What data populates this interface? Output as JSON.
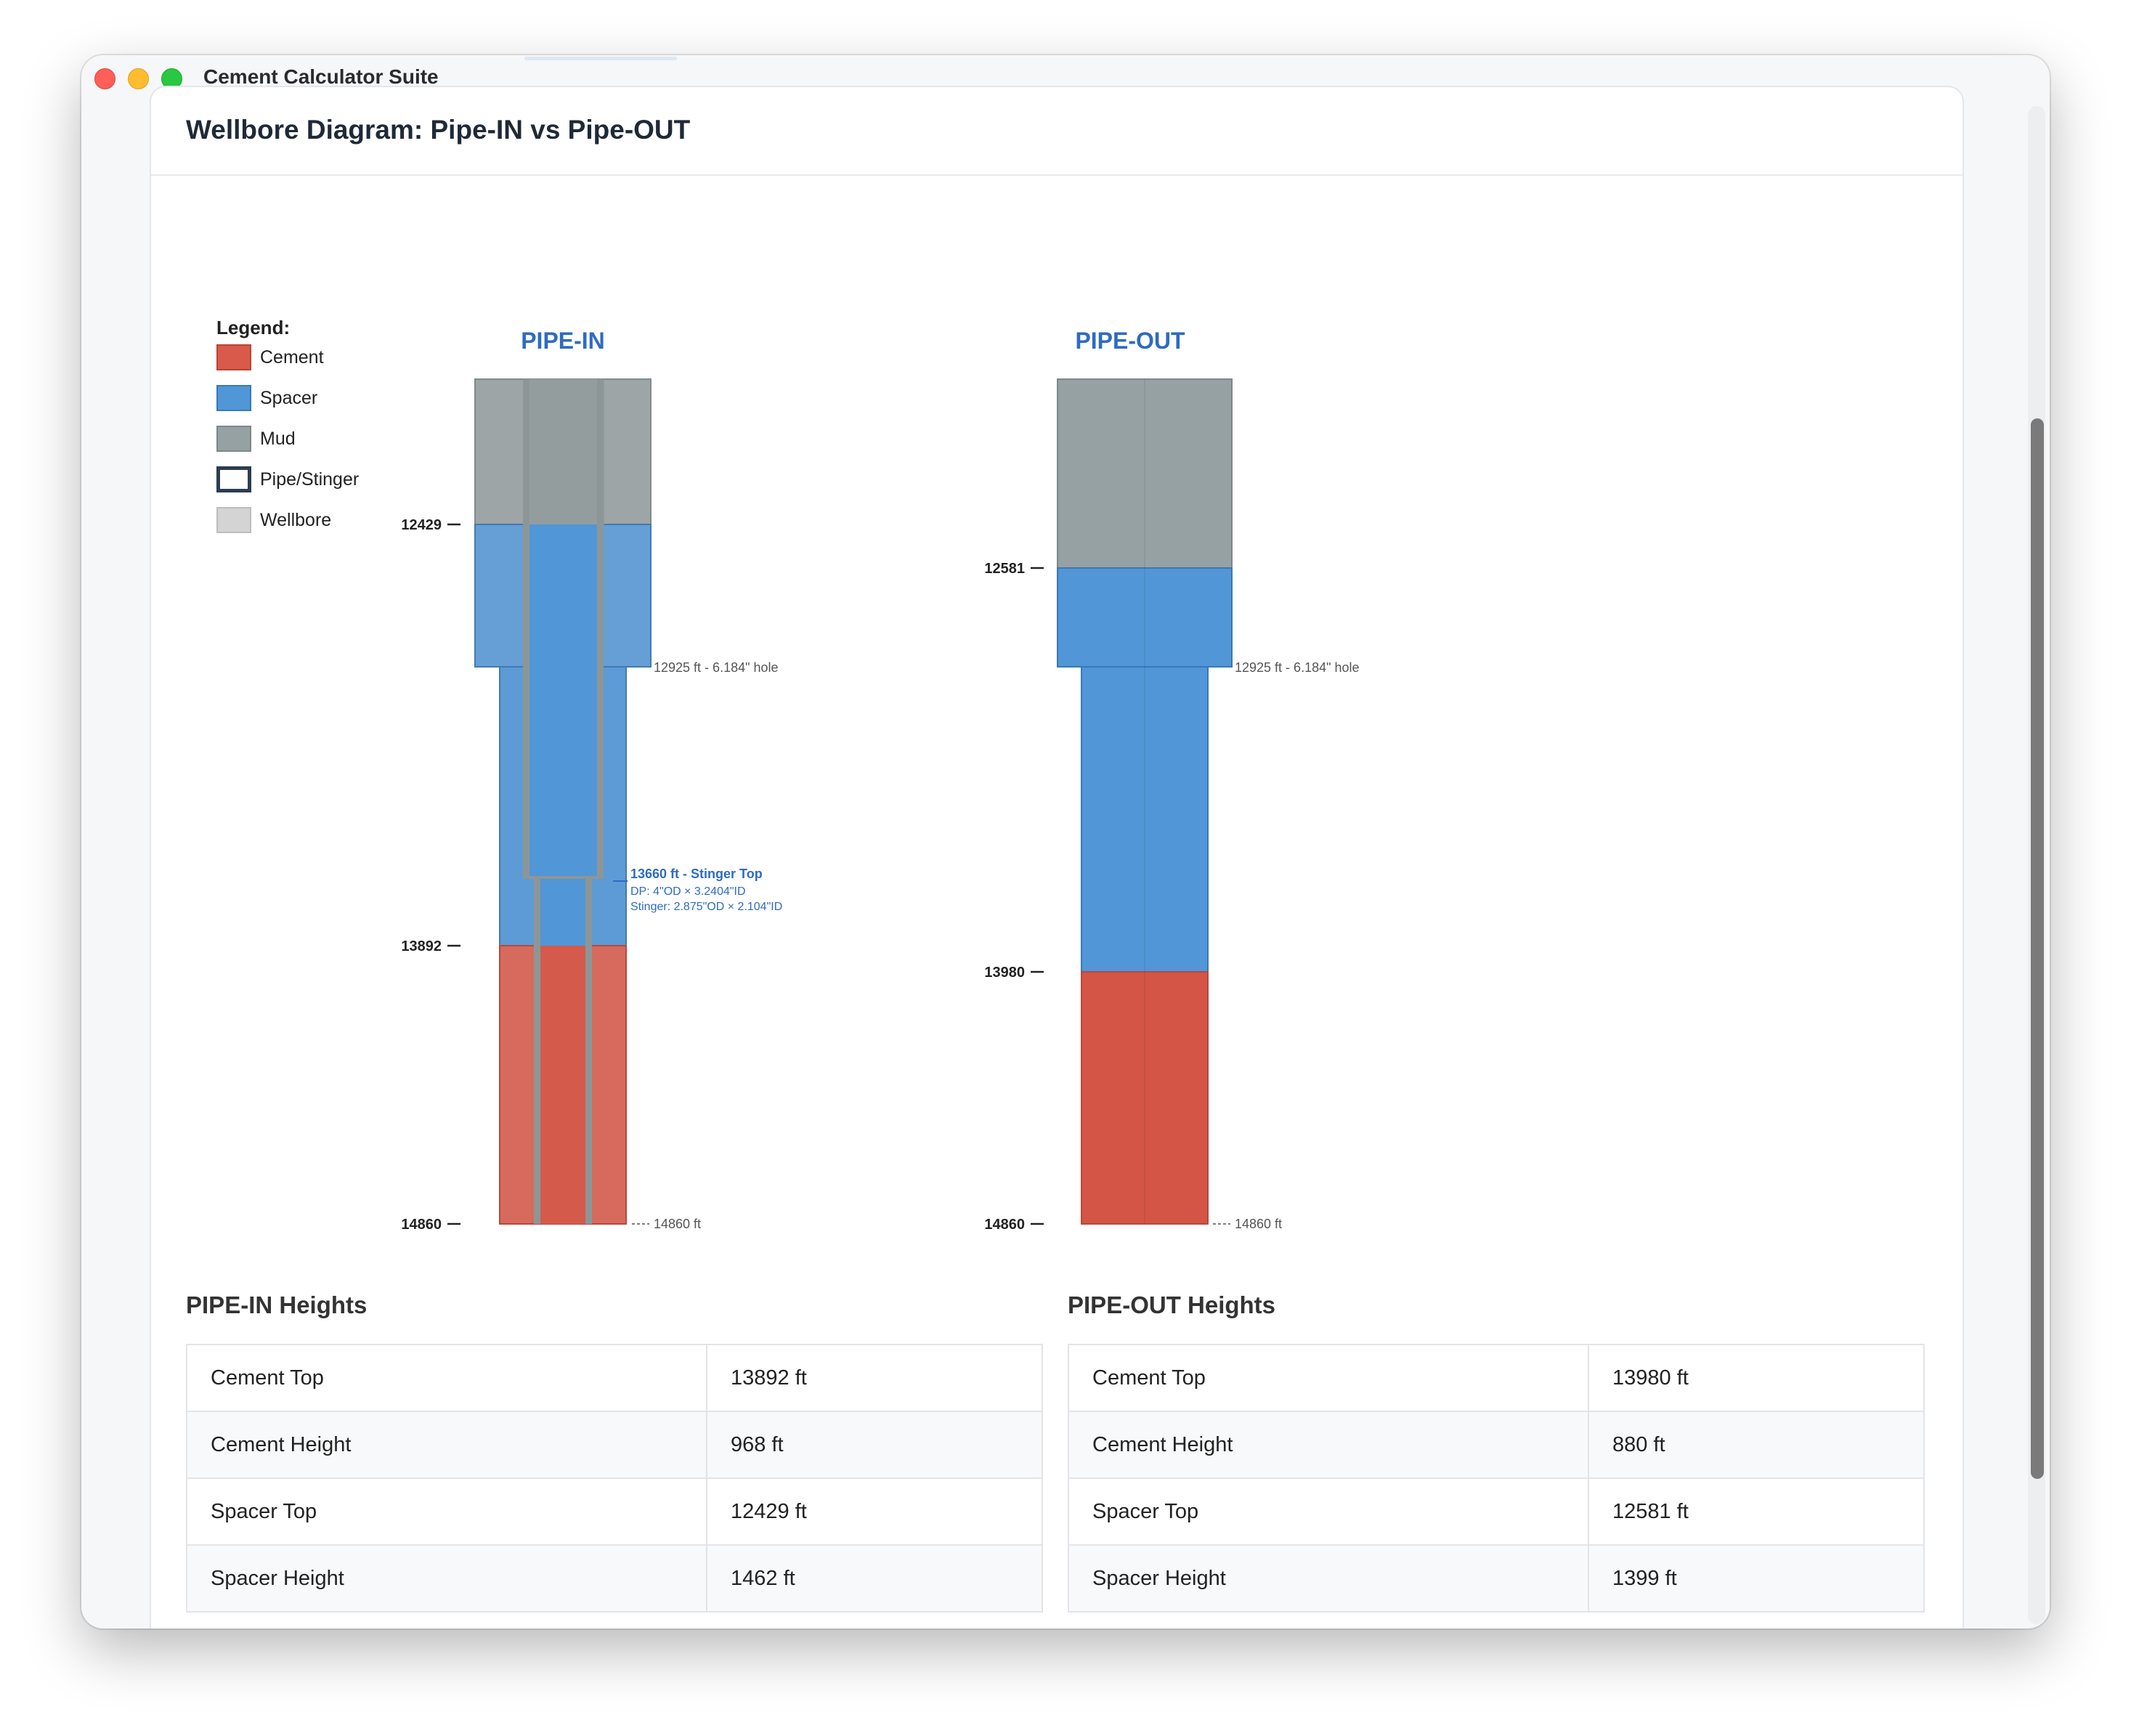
{
  "app": {
    "title": "Cement Calculator Suite"
  },
  "card": {
    "title": "Wellbore Diagram: Pipe-IN vs Pipe-OUT"
  },
  "legend": {
    "title": "Legend:",
    "items": [
      {
        "label": "Cement",
        "color": "#d95a4a"
      },
      {
        "label": "Spacer",
        "color": "#5196d6"
      },
      {
        "label": "Mud",
        "color": "#96a1a3"
      },
      {
        "label": "Pipe/Stinger",
        "color": "#ffffff"
      },
      {
        "label": "Wellbore",
        "color": "#d4d4d4"
      }
    ]
  },
  "colors": {
    "cement": "#d95a4a",
    "spacer": "#5196d6",
    "mud": "#96a1a3",
    "pipe": "#8d9697",
    "accent": "#2e6bc2"
  },
  "pipe_in": {
    "title": "PIPE-IN",
    "depth_labels": [
      "12429",
      "13892",
      "14860"
    ],
    "casing_label": "12925 ft - 6.184\" hole",
    "td_label": "14860 ft",
    "stinger_title": "13660 ft - Stinger Top",
    "stinger_dp": "DP: 4\"OD × 3.2404\"ID",
    "stinger_detail": "Stinger: 2.875\"OD × 2.104\"ID",
    "heights_title": "PIPE-IN Heights",
    "rows": [
      {
        "label": "Cement Top",
        "value": "13892 ft"
      },
      {
        "label": "Cement Height",
        "value": "968 ft"
      },
      {
        "label": "Spacer Top",
        "value": "12429 ft"
      },
      {
        "label": "Spacer Height",
        "value": "1462 ft"
      }
    ]
  },
  "pipe_out": {
    "title": "PIPE-OUT",
    "depth_labels": [
      "12581",
      "13980",
      "14860"
    ],
    "casing_label": "12925 ft - 6.184\" hole",
    "td_label": "14860 ft",
    "heights_title": "PIPE-OUT Heights",
    "rows": [
      {
        "label": "Cement Top",
        "value": "13980 ft"
      },
      {
        "label": "Cement Height",
        "value": "880 ft"
      },
      {
        "label": "Spacer Top",
        "value": "12581 ft"
      },
      {
        "label": "Spacer Height",
        "value": "1399 ft"
      }
    ]
  }
}
